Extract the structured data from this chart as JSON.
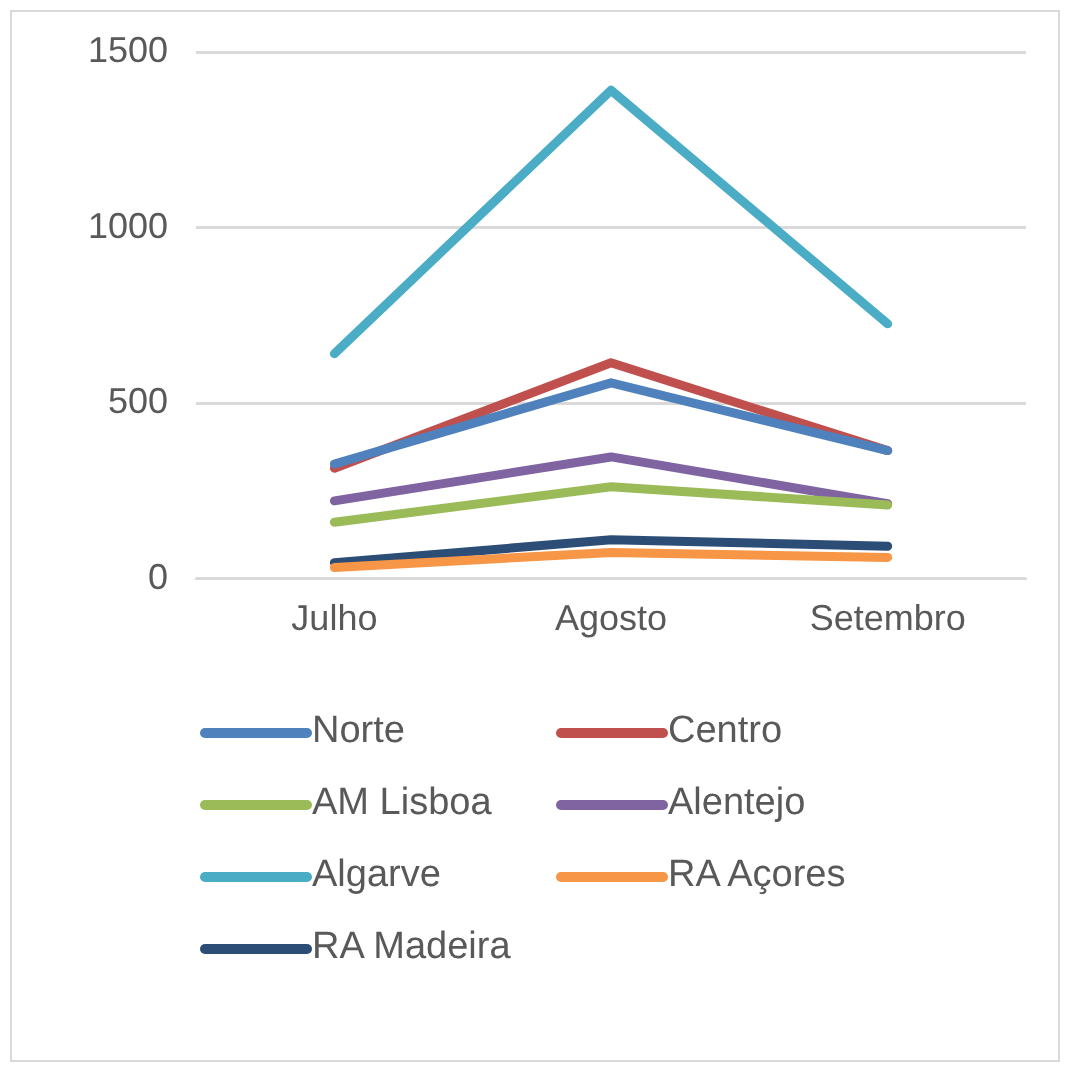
{
  "chart_data": {
    "type": "line",
    "categories": [
      "Julho",
      "Agosto",
      "Setembro"
    ],
    "series": [
      {
        "name": "Norte",
        "color": "#4f81bd",
        "values": [
          327,
          558,
          365
        ]
      },
      {
        "name": "Centro",
        "color": "#c0504d",
        "values": [
          315,
          615,
          365
        ]
      },
      {
        "name": "AM Lisboa",
        "color": "#9bbb59",
        "values": [
          161,
          262,
          210
        ]
      },
      {
        "name": "Alentejo",
        "color": "#8064a2",
        "values": [
          222,
          347,
          214
        ]
      },
      {
        "name": "Algarve",
        "color": "#4bacc6",
        "values": [
          641,
          1391,
          726
        ]
      },
      {
        "name": "RA Açores",
        "color": "#f79646",
        "values": [
          32,
          75,
          61
        ]
      },
      {
        "name": "RA Madeira",
        "color": "#2c4d75",
        "values": [
          46,
          111,
          93
        ]
      }
    ],
    "ylim": [
      0,
      1500
    ],
    "yticks": [
      0,
      500,
      1000,
      1500
    ],
    "grid": "y",
    "legend": "bottom",
    "marker": "none",
    "line_style": "solid"
  }
}
